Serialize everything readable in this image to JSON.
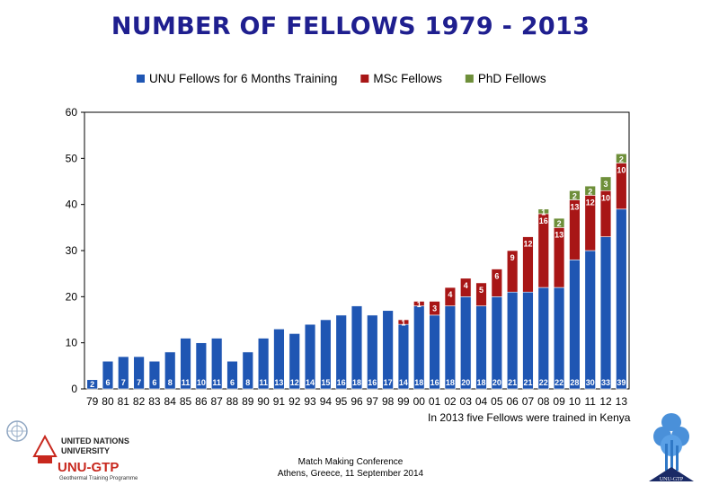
{
  "title": "NUMBER OF FELLOWS 1979 - 2013",
  "note": "In 2013 five Fellows were trained in Kenya",
  "footer": {
    "line1": "Match Making Conference",
    "line2": "Athens, Greece, 11 September 2014"
  },
  "logos": {
    "un_university": "UNITED NATIONS UNIVERSITY",
    "unu_gtp": "UNU-GTP",
    "programme": "Geothermal Training Programme",
    "tree_logo_text": "UNU-GTP"
  },
  "colors": {
    "unu": "#1f56b3",
    "msc": "#a81616",
    "phd": "#6e8f3a",
    "title": "#1f1f8f"
  },
  "chart_data": {
    "type": "bar",
    "stacked": true,
    "title": "NUMBER OF FELLOWS 1979 - 2013",
    "categories": [
      "79",
      "80",
      "81",
      "82",
      "83",
      "84",
      "85",
      "86",
      "87",
      "88",
      "89",
      "90",
      "91",
      "92",
      "93",
      "94",
      "95",
      "96",
      "97",
      "98",
      "99",
      "00",
      "01",
      "02",
      "03",
      "04",
      "05",
      "06",
      "07",
      "08",
      "09",
      "10",
      "11",
      "12",
      "13"
    ],
    "series": [
      {
        "name": "UNU Fellows for 6 Months Training",
        "color": "#1f56b3",
        "values": [
          2,
          6,
          7,
          7,
          6,
          8,
          11,
          10,
          11,
          6,
          8,
          11,
          13,
          12,
          14,
          15,
          16,
          18,
          16,
          17,
          14,
          18,
          16,
          18,
          20,
          18,
          20,
          21,
          21,
          22,
          22,
          28,
          30,
          33,
          39
        ]
      },
      {
        "name": "MSc Fellows",
        "color": "#a81616",
        "values": [
          0,
          0,
          0,
          0,
          0,
          0,
          0,
          0,
          0,
          0,
          0,
          0,
          0,
          0,
          0,
          0,
          0,
          0,
          0,
          0,
          1,
          1,
          3,
          4,
          4,
          5,
          6,
          9,
          12,
          16,
          13,
          13,
          12,
          10,
          10
        ]
      },
      {
        "name": "PhD Fellows",
        "color": "#6e8f3a",
        "values": [
          0,
          0,
          0,
          0,
          0,
          0,
          0,
          0,
          0,
          0,
          0,
          0,
          0,
          0,
          0,
          0,
          0,
          0,
          0,
          0,
          0,
          0,
          0,
          0,
          0,
          0,
          0,
          0,
          0,
          1,
          2,
          2,
          2,
          3,
          2
        ]
      }
    ],
    "ylim": [
      0,
      60
    ],
    "yticks": [
      0,
      10,
      20,
      30,
      40,
      50,
      60
    ],
    "grid": false,
    "legend": "top"
  }
}
